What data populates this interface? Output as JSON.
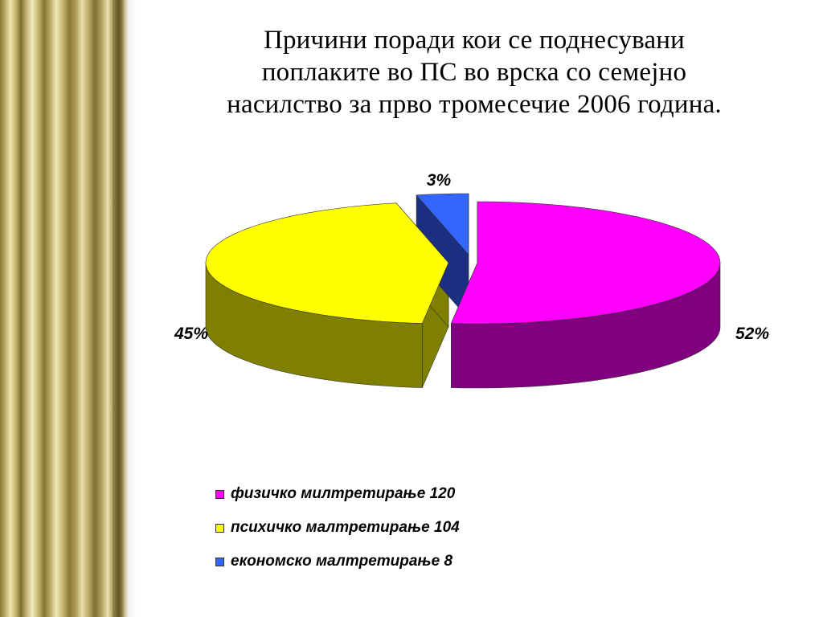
{
  "slide": {
    "title_lines": [
      "Причини поради кои се поднесувани",
      "поплаките во ПС во врска со семејно",
      "насилство за прво тромесечие 2006 година."
    ]
  },
  "chart_data": {
    "type": "pie",
    "title": "Причини поради кои се поднесувани поплаките во ПС во врска со семејно насилство за прво тромесечие 2006 година.",
    "three_d": true,
    "exploded": true,
    "legend_position": "bottom",
    "slices": [
      {
        "label": "физичко милтретирање 120",
        "value": 120,
        "percent_label": "52%",
        "color": "#ff00ff",
        "side_color": "#800080"
      },
      {
        "label": "психичко малтретирање 104",
        "value": 104,
        "percent_label": "45%",
        "color": "#ffff00",
        "side_color": "#808000"
      },
      {
        "label": "економско малтретирање 8",
        "value": 8,
        "percent_label": "3%",
        "color": "#3366ff",
        "side_color": "#1a2f80"
      }
    ]
  }
}
